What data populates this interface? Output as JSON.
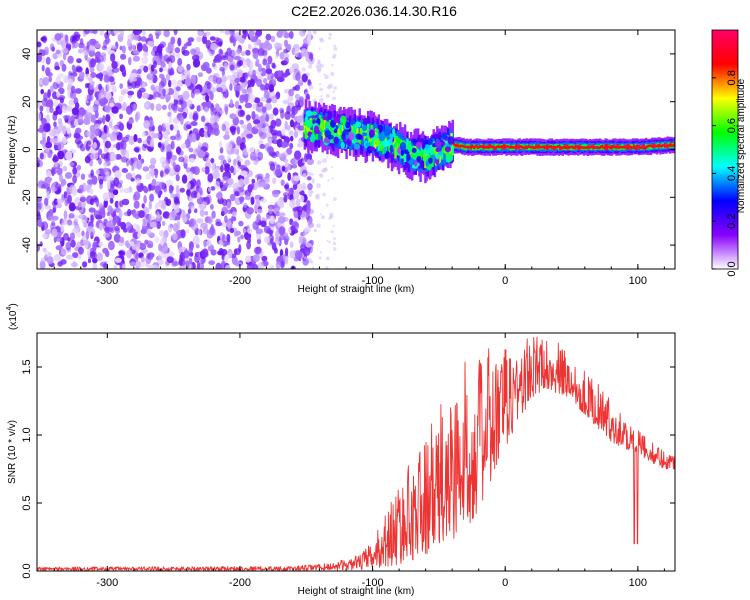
{
  "title": "C2E2.2026.036.14.30.R16",
  "chart_data": [
    {
      "type": "heatmap",
      "name": "spectrogram",
      "xlabel": "Height of straight line (km)",
      "ylabel": "Frequency (Hz)",
      "xlim": [
        -353,
        128
      ],
      "ylim": [
        -50,
        50
      ],
      "xticks": [
        -300,
        -200,
        -100,
        0,
        100
      ],
      "xtick_labels": [
        "-300",
        "-200",
        "-100",
        "0",
        "100"
      ],
      "yticks": [
        -40,
        -20,
        0,
        20,
        40
      ],
      "ytick_labels": [
        "-40",
        "-20",
        "0",
        "20",
        "40"
      ],
      "noise_region": [
        -353,
        -152
      ],
      "signal_track": {
        "x": [
          -152,
          -140,
          -120,
          -100,
          -85,
          -70,
          -60,
          -50,
          -40,
          -30,
          -20,
          0,
          50,
          100,
          128
        ],
        "freq_hz": [
          10,
          9,
          7,
          5,
          2,
          -2,
          -3,
          -1,
          2,
          1,
          1,
          1,
          1,
          1,
          2
        ]
      },
      "colorbar": {
        "label": "Normalized spectral amplitude",
        "range": [
          0,
          1
        ],
        "ticks": [
          0.0,
          0.2,
          0.4,
          0.6,
          0.8
        ],
        "tick_labels": [
          "0.0",
          "0.2",
          "0.4",
          "0.6",
          "0.8"
        ],
        "colormap": [
          "#ffffff",
          "#8800ff",
          "#0000ff",
          "#00ffff",
          "#00ff00",
          "#ffff00",
          "#ff0000",
          "#ff0066"
        ]
      }
    },
    {
      "type": "line",
      "name": "snr",
      "xlabel": "Height of straight line (km)",
      "ylabel": "SNR (10 * v/v)",
      "scale_label": "(x10",
      "scale_exp": "4",
      "scale_close": ")",
      "xlim": [
        -353,
        128
      ],
      "ylim": [
        0,
        17500
      ],
      "xticks": [
        -300,
        -200,
        -100,
        0,
        100
      ],
      "xtick_labels": [
        "-300",
        "-200",
        "-100",
        "0",
        "100"
      ],
      "yticks": [
        0,
        5000,
        10000,
        15000
      ],
      "ytick_labels": [
        "0.0",
        "0.5",
        "1.0",
        "1.5"
      ],
      "line_color": "#ee3333",
      "envelope": {
        "x": [
          -353,
          -160,
          -130,
          -110,
          -100,
          -90,
          -80,
          -70,
          -60,
          -50,
          -40,
          -30,
          -20,
          -10,
          0,
          10,
          20,
          30,
          40,
          50,
          60,
          70,
          80,
          90,
          100,
          110,
          120,
          128
        ],
        "lower": [
          0,
          0,
          50,
          100,
          200,
          300,
          500,
          800,
          1200,
          1600,
          2200,
          3000,
          4500,
          6500,
          9000,
          11000,
          12500,
          13500,
          13000,
          12500,
          11500,
          10500,
          9500,
          9000,
          8500,
          8000,
          7500,
          7500
        ],
        "upper": [
          300,
          350,
          600,
          1200,
          2200,
          4500,
          6500,
          8500,
          10000,
          12000,
          14000,
          15500,
          16000,
          16500,
          16500,
          17000,
          17500,
          17200,
          16800,
          16000,
          14800,
          13800,
          12500,
          11500,
          10500,
          9500,
          9000,
          8500
        ]
      }
    }
  ]
}
